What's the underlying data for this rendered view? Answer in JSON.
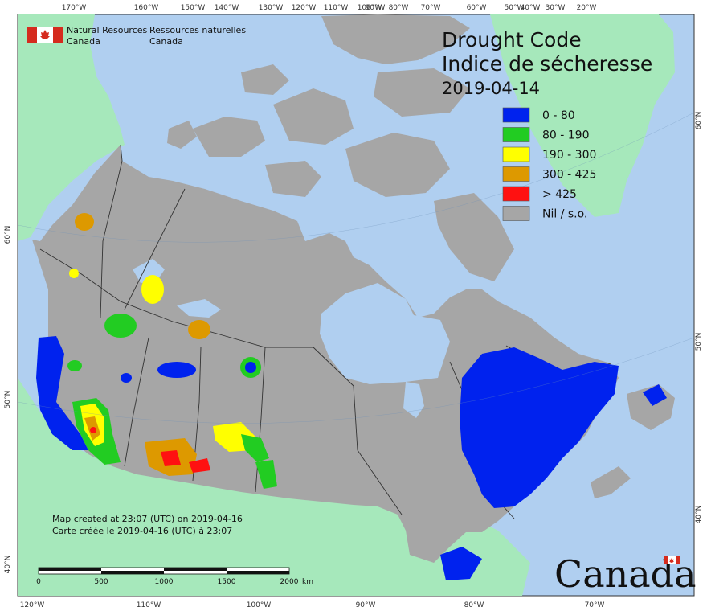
{
  "map": {
    "title_en": "Drought Code",
    "title_fr": "Indice de sécheresse",
    "date": "2019-04-14",
    "agency": {
      "en_line1": "Natural Resources",
      "en_line2": "Canada",
      "fr_line1": "Ressources naturelles",
      "fr_line2": "Canada",
      "logo": "canada-flag-icon"
    },
    "legend": [
      {
        "label": "0 - 80",
        "color": "#0022ee"
      },
      {
        "label": "80 - 190",
        "color": "#22cc22"
      },
      {
        "label": "190 - 300",
        "color": "#ffff00"
      },
      {
        "label": "300 - 425",
        "color": "#dd9900"
      },
      {
        "label": "> 425",
        "color": "#ff1111"
      },
      {
        "label": "Nil / s.o.",
        "color": "#a6a6a6"
      }
    ],
    "credit_en": "Map created at 23:07 (UTC) on 2019-04-16",
    "credit_fr": "Carte créée le 2019-04-16 (UTC) à 23:07",
    "scale": {
      "ticks": [
        "0",
        "500",
        "1000",
        "1500",
        "2000"
      ],
      "unit": "km"
    },
    "wordmark": "Canada",
    "graticule": {
      "top": [
        "170°W",
        "160°W",
        "150°W",
        "140°W",
        "130°W",
        "120°W",
        "110°W",
        "100°W",
        "90°W",
        "80°W",
        "70°W",
        "60°W",
        "50°W",
        "40°W",
        "30°W",
        "20°W"
      ],
      "bottom": [
        "120°W",
        "110°W",
        "100°W",
        "90°W",
        "80°W",
        "70°W"
      ],
      "left": [
        "60°N",
        "50°N",
        "40°N"
      ],
      "right": [
        "60°N",
        "50°N",
        "40°N"
      ]
    },
    "colors": {
      "ocean": "#b0cff0",
      "land_other": "#a6e8bb",
      "nil": "#a6a6a6",
      "border": "#333333"
    }
  }
}
